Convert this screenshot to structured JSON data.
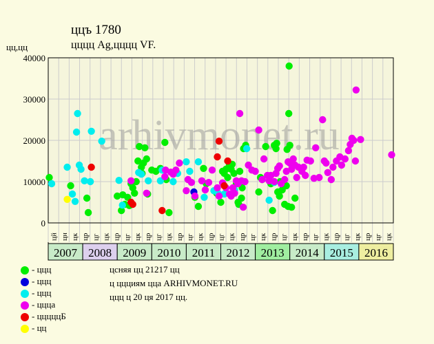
{
  "header": {
    "title": "ццъ 1780",
    "subtitle": "цццц Ag,цццц VF.",
    "units": "цц,цц"
  },
  "watermark": "arhivmonet.ru",
  "colors": {
    "green": "#00ee00",
    "blue": "#0000dd",
    "cyan": "#00eeee",
    "magenta": "#ee00ee",
    "red": "#ee0000",
    "yellow": "#ffff00",
    "grid": "#cccccc",
    "bg": "#fbfbe1"
  },
  "legend": [
    {
      "label": "- ццц",
      "color": "#00ee00"
    },
    {
      "label": "- ццц",
      "color": "#0000dd"
    },
    {
      "label": "- ццц",
      "color": "#00eeee"
    },
    {
      "label": "- ццца",
      "color": "#ee00ee"
    },
    {
      "label": "- цццццБ",
      "color": "#ee0000"
    },
    {
      "label": "- цц",
      "color": "#ffff00"
    }
  ],
  "info_lines": [
    "цcняя цц 21217 цц",
    "ц ццциям цца ARHIVMONET.RU",
    "ццц ц 20 ця 2017 цц."
  ],
  "chart_data": {
    "type": "scatter",
    "ylim": [
      0,
      40000
    ],
    "yticks": [
      0,
      10000,
      20000,
      30000,
      40000
    ],
    "xlim": [
      2007,
      2017
    ],
    "years": [
      "2007",
      "2008",
      "2009",
      "2010",
      "2011",
      "2012",
      "2013",
      "2014",
      "2015",
      "2016"
    ],
    "year_colors": [
      "#c8ebc8",
      "#ddd0ee",
      "#c8ebc8",
      "#c8ebc8",
      "#c8ebc8",
      "#c8ebc8",
      "#a0eea0",
      "#c8ebc8",
      "#a8eee0",
      "#eeeea0"
    ],
    "half_labels": [
      "цй",
      "цн",
      "цк",
      "цр",
      "цг",
      "цк",
      "цр",
      "цг",
      "цк",
      "цр",
      "цг",
      "цк",
      "цр",
      "цг",
      "цк",
      "цр",
      "цг",
      "цк",
      "цр",
      "цг",
      "цк",
      "цр",
      "цг",
      "цк",
      "цр",
      "цг",
      "цк",
      "цр",
      "цг",
      "цк",
      "цр",
      "цг",
      "цк"
    ],
    "series": [
      {
        "color": "#00ee00",
        "points": [
          [
            2007.03,
            11000
          ],
          [
            2007.65,
            9000
          ],
          [
            2008.12,
            6000
          ],
          [
            2008.16,
            2500
          ],
          [
            2009.0,
            6500
          ],
          [
            2009.16,
            6800
          ],
          [
            2009.3,
            6200
          ],
          [
            2009.12,
            3000
          ],
          [
            2009.22,
            4500
          ],
          [
            2009.35,
            4200
          ],
          [
            2009.4,
            9500
          ],
          [
            2009.45,
            8500
          ],
          [
            2009.5,
            7200
          ],
          [
            2009.55,
            10000
          ],
          [
            2009.6,
            15000
          ],
          [
            2009.64,
            18500
          ],
          [
            2009.7,
            13500
          ],
          [
            2009.72,
            12000
          ],
          [
            2009.76,
            14500
          ],
          [
            2009.8,
            18200
          ],
          [
            2009.85,
            15500
          ],
          [
            2009.88,
            7000
          ],
          [
            2010.0,
            12800
          ],
          [
            2010.12,
            12500
          ],
          [
            2010.25,
            13200
          ],
          [
            2010.38,
            19500
          ],
          [
            2010.42,
            10500
          ],
          [
            2010.5,
            2500
          ],
          [
            2011.25,
            6200
          ],
          [
            2011.35,
            4000
          ],
          [
            2011.5,
            13200
          ],
          [
            2011.58,
            9500
          ],
          [
            2011.88,
            7200
          ],
          [
            2011.95,
            6800
          ],
          [
            2012.0,
            5000
          ],
          [
            2012.05,
            12500
          ],
          [
            2012.1,
            12000
          ],
          [
            2012.15,
            13000
          ],
          [
            2012.2,
            11000
          ],
          [
            2012.25,
            14000
          ],
          [
            2012.3,
            13000
          ],
          [
            2012.33,
            14200
          ],
          [
            2012.38,
            12000
          ],
          [
            2012.45,
            9500
          ],
          [
            2012.5,
            5000
          ],
          [
            2012.52,
            4500
          ],
          [
            2012.55,
            12500
          ],
          [
            2012.6,
            6000
          ],
          [
            2012.62,
            8500
          ],
          [
            2012.66,
            18000
          ],
          [
            2012.72,
            18800
          ],
          [
            2013.1,
            7500
          ],
          [
            2013.15,
            11000
          ],
          [
            2013.2,
            10500
          ],
          [
            2013.3,
            18500
          ],
          [
            2013.45,
            9500
          ],
          [
            2013.5,
            3000
          ],
          [
            2013.55,
            18800
          ],
          [
            2013.6,
            18000
          ],
          [
            2013.62,
            19300
          ],
          [
            2013.65,
            7500
          ],
          [
            2013.7,
            6500
          ],
          [
            2013.72,
            10000
          ],
          [
            2013.78,
            8000
          ],
          [
            2013.85,
            4500
          ],
          [
            2013.9,
            9000
          ],
          [
            2013.92,
            17800
          ],
          [
            2013.95,
            4000
          ],
          [
            2013.97,
            26500
          ],
          [
            2013.98,
            38000
          ],
          [
            2014.0,
            18800
          ],
          [
            2014.05,
            3800
          ],
          [
            2014.15,
            6000
          ]
        ]
      },
      {
        "color": "#0000dd",
        "points": [
          [
            2011.22,
            7500
          ]
        ]
      },
      {
        "color": "#00eeee",
        "points": [
          [
            2007.1,
            9500
          ],
          [
            2007.55,
            13500
          ],
          [
            2007.7,
            7000
          ],
          [
            2007.78,
            5200
          ],
          [
            2007.82,
            22000
          ],
          [
            2007.85,
            26500
          ],
          [
            2007.9,
            14000
          ],
          [
            2007.95,
            13000
          ],
          [
            2008.05,
            10200
          ],
          [
            2008.22,
            10000
          ],
          [
            2008.25,
            22200
          ],
          [
            2008.55,
            19800
          ],
          [
            2009.05,
            10300
          ],
          [
            2009.15,
            4300
          ],
          [
            2009.62,
            12200
          ],
          [
            2009.7,
            11800
          ],
          [
            2009.9,
            10200
          ],
          [
            2010.25,
            10200
          ],
          [
            2010.3,
            12800
          ],
          [
            2010.62,
            10000
          ],
          [
            2010.75,
            12000
          ],
          [
            2011.0,
            14800
          ],
          [
            2011.1,
            12500
          ],
          [
            2011.35,
            14800
          ],
          [
            2011.52,
            6200
          ],
          [
            2011.8,
            7800
          ],
          [
            2011.92,
            7200
          ],
          [
            2012.1,
            7000
          ],
          [
            2012.4,
            8000
          ],
          [
            2012.75,
            18000
          ],
          [
            2013.4,
            5500
          ],
          [
            2013.55,
            9800
          ]
        ]
      },
      {
        "color": "#ee00ee",
        "points": [
          [
            2009.4,
            10200
          ],
          [
            2009.85,
            7200
          ],
          [
            2010.4,
            12800
          ],
          [
            2010.38,
            11200
          ],
          [
            2010.55,
            12300
          ],
          [
            2010.62,
            11800
          ],
          [
            2010.7,
            12800
          ],
          [
            2010.8,
            14500
          ],
          [
            2011.0,
            7800
          ],
          [
            2011.05,
            10500
          ],
          [
            2011.15,
            9800
          ],
          [
            2011.25,
            6500
          ],
          [
            2011.45,
            10200
          ],
          [
            2011.55,
            8000
          ],
          [
            2011.65,
            9800
          ],
          [
            2011.75,
            12800
          ],
          [
            2011.9,
            8500
          ],
          [
            2011.95,
            6500
          ],
          [
            2012.05,
            9700
          ],
          [
            2012.15,
            8500
          ],
          [
            2012.25,
            7000
          ],
          [
            2012.3,
            6500
          ],
          [
            2012.35,
            8500
          ],
          [
            2012.4,
            7200
          ],
          [
            2012.45,
            10200
          ],
          [
            2012.5,
            9500
          ],
          [
            2012.55,
            26500
          ],
          [
            2012.6,
            10200
          ],
          [
            2012.65,
            3800
          ],
          [
            2012.7,
            10000
          ],
          [
            2012.8,
            14000
          ],
          [
            2012.9,
            12800
          ],
          [
            2013.0,
            12500
          ],
          [
            2013.1,
            22500
          ],
          [
            2013.2,
            10500
          ],
          [
            2013.25,
            15500
          ],
          [
            2013.35,
            11500
          ],
          [
            2013.4,
            10200
          ],
          [
            2013.45,
            11500
          ],
          [
            2013.55,
            10000
          ],
          [
            2013.6,
            12000
          ],
          [
            2013.65,
            13200
          ],
          [
            2013.7,
            13800
          ],
          [
            2013.75,
            9500
          ],
          [
            2013.85,
            10500
          ],
          [
            2013.9,
            12500
          ],
          [
            2013.95,
            14800
          ],
          [
            2014.0,
            14500
          ],
          [
            2014.05,
            13000
          ],
          [
            2014.1,
            15500
          ],
          [
            2014.15,
            14000
          ],
          [
            2014.2,
            11000
          ],
          [
            2014.25,
            13500
          ],
          [
            2014.35,
            12500
          ],
          [
            2014.4,
            13500
          ],
          [
            2014.45,
            11500
          ],
          [
            2014.5,
            15200
          ],
          [
            2014.6,
            15000
          ],
          [
            2014.7,
            10800
          ],
          [
            2014.75,
            18200
          ],
          [
            2014.85,
            11000
          ],
          [
            2014.95,
            25000
          ],
          [
            2015.0,
            15000
          ],
          [
            2015.05,
            14500
          ],
          [
            2015.1,
            12200
          ],
          [
            2015.2,
            10500
          ],
          [
            2015.25,
            13500
          ],
          [
            2015.35,
            15000
          ],
          [
            2015.45,
            16000
          ],
          [
            2015.5,
            14000
          ],
          [
            2015.6,
            15500
          ],
          [
            2015.7,
            17500
          ],
          [
            2015.75,
            19000
          ],
          [
            2015.8,
            20500
          ],
          [
            2015.85,
            20000
          ],
          [
            2015.9,
            15000
          ],
          [
            2015.92,
            32200
          ],
          [
            2016.05,
            20200
          ],
          [
            2016.95,
            16500
          ]
        ]
      },
      {
        "color": "#ee0000",
        "points": [
          [
            2008.25,
            13500
          ],
          [
            2009.4,
            5000
          ],
          [
            2009.45,
            4500
          ],
          [
            2010.3,
            3000
          ],
          [
            2011.9,
            16000
          ],
          [
            2011.95,
            19800
          ],
          [
            2012.1,
            9000
          ],
          [
            2012.2,
            15000
          ]
        ]
      },
      {
        "color": "#ffff00",
        "points": [
          [
            2007.55,
            5700
          ]
        ]
      }
    ]
  }
}
